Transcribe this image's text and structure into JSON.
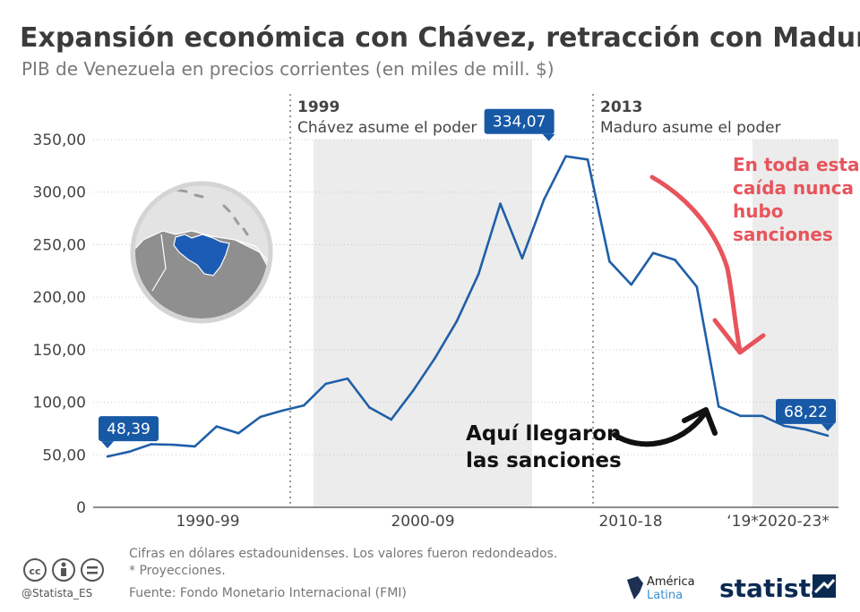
{
  "title": "Expansión económica con Chávez, retracción con Maduro",
  "subtitle": "PIB de Venezuela en precios corrientes (en miles de mill. $)",
  "chart_data": {
    "type": "line",
    "x": [
      1990,
      1991,
      1992,
      1993,
      1994,
      1995,
      1996,
      1997,
      1998,
      1999,
      2000,
      2001,
      2002,
      2003,
      2004,
      2005,
      2006,
      2007,
      2008,
      2009,
      2010,
      2011,
      2012,
      2013,
      2014,
      2015,
      2016,
      2017,
      2018,
      2019,
      2020,
      2021,
      2022,
      2023
    ],
    "series": [
      {
        "name": "PIB",
        "color": "#1f5fa8",
        "values": [
          48.39,
          53,
          60,
          59.5,
          58,
          77,
          70.5,
          86,
          92,
          97,
          117.5,
          122.5,
          95,
          83.5,
          111,
          142,
          177,
          222,
          289,
          237,
          293,
          334.07,
          331,
          234,
          212,
          242,
          235.5,
          210,
          96,
          87,
          87,
          77.5,
          74,
          68.22
        ]
      }
    ],
    "ylim": [
      0,
      350
    ],
    "yticks": [
      "0",
      "50,00",
      "100,00",
      "150,00",
      "200,00",
      "250,00",
      "300,00",
      "350,00"
    ],
    "categories": [
      {
        "label": "1990-99",
        "shaded": false
      },
      {
        "label": "2000-09",
        "shaded": true
      },
      {
        "label": "2010-18",
        "shaded": false
      },
      {
        "label": "‘19*",
        "shaded": false
      },
      {
        "label": "2020-23*",
        "shaded": true
      }
    ],
    "data_labels": [
      {
        "year": 1990,
        "text": "48,39"
      },
      {
        "year": 2011,
        "text": "334,07"
      },
      {
        "year": 2023,
        "text": "68,22"
      }
    ],
    "eras": [
      {
        "year": "1999",
        "text": "Chávez asume el poder"
      },
      {
        "year": "2013",
        "text": "Maduro asume el poder"
      }
    ],
    "grid": true,
    "legend": "none"
  },
  "annotations": {
    "red_note": [
      "En toda esta",
      "caída nunca",
      "hubo",
      "sanciones"
    ],
    "black_note": [
      "Aquí llegaron",
      "las sanciones"
    ]
  },
  "footer": {
    "notes": [
      "Cifras en dólares estadounidenses. Los valores fueron redondeados.",
      "* Proyecciones."
    ],
    "source": "Fuente: Fondo Monetario Internacional (FMI)",
    "handle": "@Statista_ES",
    "partner_line1": "América",
    "partner_line2": "Latina",
    "brand": "statista"
  },
  "colors": {
    "line": "#1f5fa8",
    "label_bg": "#1859a6",
    "shade": "#ececec",
    "red": "#e8545c",
    "venezuela": "#1c5cb4"
  }
}
